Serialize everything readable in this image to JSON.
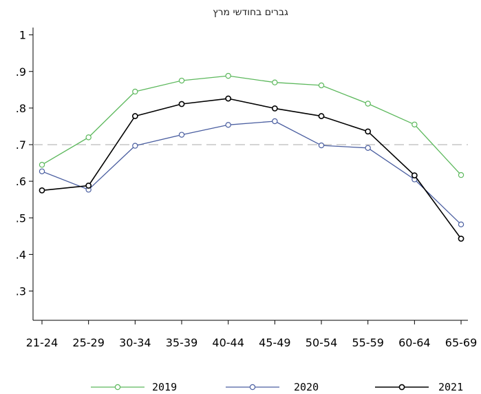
{
  "chart_data": {
    "type": "line",
    "title": "גברים בחודשי מרץ",
    "xlabel": "",
    "ylabel": "",
    "categories": [
      "21-24",
      "25-29",
      "30-34",
      "35-39",
      "40-44",
      "45-49",
      "50-54",
      "55-59",
      "60-64",
      "65-69"
    ],
    "ylim": [
      0.22,
      1.02
    ],
    "yticks": [
      0.3,
      0.4,
      0.5,
      0.6,
      0.7,
      0.8,
      0.9,
      1.0
    ],
    "ytick_labels": [
      ".3",
      ".4",
      ".5",
      ".6",
      ".7",
      ".8",
      ".9",
      "1"
    ],
    "grid": false,
    "reference_line": {
      "y": 0.7,
      "style": "dashed",
      "color": "#bbbbbb"
    },
    "legend_position": "bottom",
    "series": [
      {
        "name": "2019",
        "color": "#5cb85c",
        "values": [
          0.645,
          0.72,
          0.845,
          0.875,
          0.888,
          0.87,
          0.862,
          0.812,
          0.755,
          0.617
        ]
      },
      {
        "name": "2020",
        "color": "#4a5ea0",
        "values": [
          0.627,
          0.577,
          0.697,
          0.727,
          0.754,
          0.764,
          0.698,
          0.691,
          0.605,
          0.482
        ]
      },
      {
        "name": "2021",
        "color": "#000000",
        "values": [
          0.575,
          0.588,
          0.778,
          0.811,
          0.826,
          0.799,
          0.778,
          0.736,
          0.616,
          0.443
        ]
      }
    ]
  }
}
